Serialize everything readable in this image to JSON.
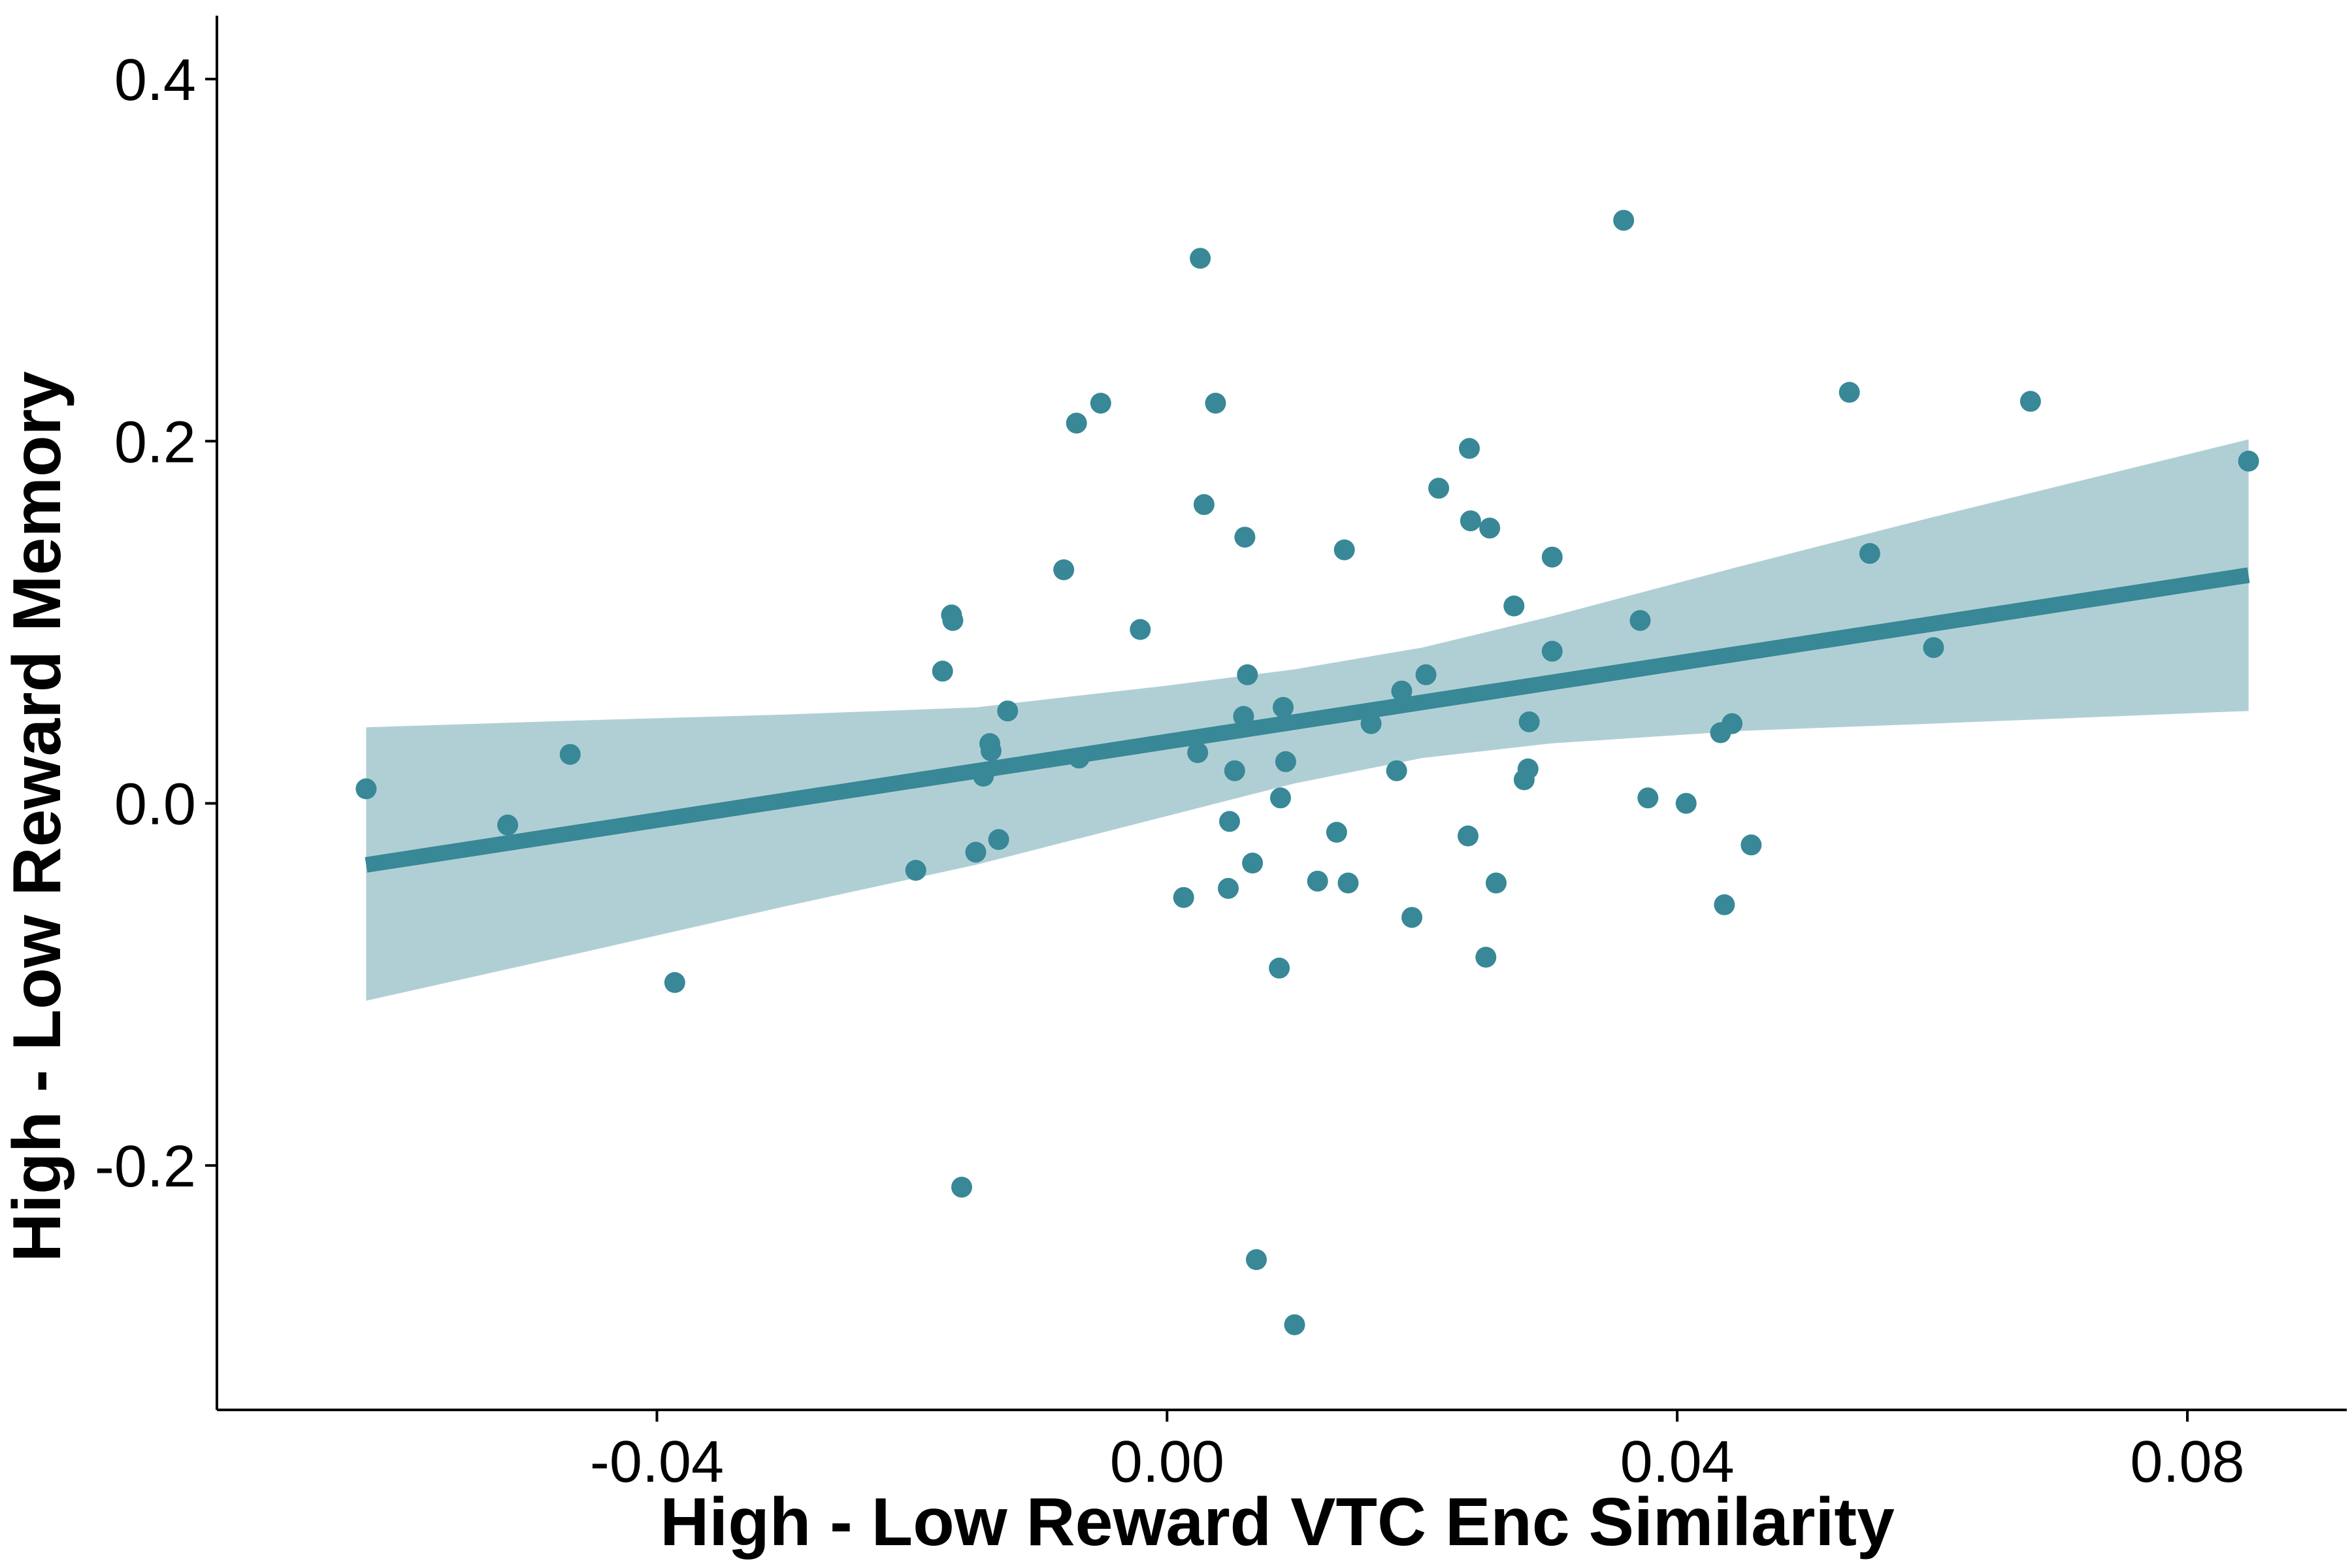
{
  "chart_data": {
    "type": "scatter",
    "title": "",
    "xlabel": "High - Low Reward VTC Enc Similarity",
    "ylabel": "High - Low Reward Memory",
    "xlim": [
      -0.0745,
      0.0925
    ],
    "ylim": [
      -0.335,
      0.435
    ],
    "x_ticks": [
      -0.04,
      0.0,
      0.04,
      0.08
    ],
    "x_tick_labels": [
      "-0.04",
      "0.00",
      "0.04",
      "0.08"
    ],
    "y_ticks": [
      -0.2,
      0.0,
      0.2,
      0.4
    ],
    "y_tick_labels": [
      "-0.2",
      "0.0",
      "0.2",
      "0.4"
    ],
    "grid": false,
    "legend": "none",
    "colors": {
      "points": "#388897",
      "fit_line": "#388897",
      "confidence_band": "#b0cfd5",
      "axes": "#000000"
    },
    "series": [
      {
        "points": [
          [
            -0.0628,
            0.008
          ],
          [
            -0.0517,
            -0.012
          ],
          [
            -0.0468,
            0.027
          ],
          [
            -0.0386,
            -0.099
          ],
          [
            -0.0197,
            -0.037
          ],
          [
            -0.0176,
            0.073
          ],
          [
            -0.0169,
            0.104
          ],
          [
            -0.0168,
            0.101
          ],
          [
            -0.0161,
            -0.212
          ],
          [
            -0.015,
            -0.027
          ],
          [
            -0.0144,
            0.015
          ],
          [
            -0.0139,
            0.033
          ],
          [
            -0.0138,
            0.029
          ],
          [
            -0.0132,
            -0.02
          ],
          [
            -0.0125,
            0.051
          ],
          [
            -0.0081,
            0.129
          ],
          [
            -0.0071,
            0.21
          ],
          [
            -0.0069,
            0.025
          ],
          [
            -0.0052,
            0.221
          ],
          [
            -0.0021,
            0.096
          ],
          [
            0.0013,
            -0.052
          ],
          [
            0.0024,
            0.028
          ],
          [
            0.0026,
            0.301
          ],
          [
            0.0029,
            0.165
          ],
          [
            0.0038,
            0.221
          ],
          [
            0.0048,
            -0.047
          ],
          [
            0.0049,
            -0.01
          ],
          [
            0.0053,
            0.018
          ],
          [
            0.006,
            0.048
          ],
          [
            0.0061,
            0.147
          ],
          [
            0.0063,
            0.071
          ],
          [
            0.0067,
            -0.033
          ],
          [
            0.007,
            -0.252
          ],
          [
            0.0088,
            -0.091
          ],
          [
            0.0089,
            0.003
          ],
          [
            0.0091,
            0.053
          ],
          [
            0.0093,
            0.023
          ],
          [
            0.01,
            -0.288
          ],
          [
            0.0118,
            -0.043
          ],
          [
            0.0133,
            -0.016
          ],
          [
            0.0139,
            0.14
          ],
          [
            0.0142,
            -0.044
          ],
          [
            0.016,
            0.044
          ],
          [
            0.018,
            0.018
          ],
          [
            0.0184,
            0.062
          ],
          [
            0.0192,
            -0.063
          ],
          [
            0.0203,
            0.071
          ],
          [
            0.0213,
            0.174
          ],
          [
            0.0236,
            -0.018
          ],
          [
            0.0237,
            0.196
          ],
          [
            0.0238,
            0.156
          ],
          [
            0.0253,
            0.152
          ],
          [
            0.0258,
            -0.044
          ],
          [
            0.025,
            -0.085
          ],
          [
            0.0272,
            0.109
          ],
          [
            0.028,
            0.013
          ],
          [
            0.0283,
            0.019
          ],
          [
            0.0284,
            0.045
          ],
          [
            0.0302,
            0.084
          ],
          [
            0.0302,
            0.136
          ],
          [
            0.0358,
            0.322
          ],
          [
            0.0371,
            0.101
          ],
          [
            0.0377,
            0.003
          ],
          [
            0.0407,
            0.0
          ],
          [
            0.0434,
            0.039
          ],
          [
            0.0437,
            -0.056
          ],
          [
            0.0443,
            0.044
          ],
          [
            0.0458,
            -0.023
          ],
          [
            0.0535,
            0.227
          ],
          [
            0.0551,
            0.138
          ],
          [
            0.0601,
            0.086
          ],
          [
            0.0677,
            0.222
          ],
          [
            0.0848,
            0.189
          ]
        ]
      }
    ],
    "fit_line": {
      "x": [
        -0.0628,
        0.0848
      ],
      "y": [
        -0.034,
        0.126
      ]
    },
    "confidence_band": {
      "x": [
        -0.0628,
        -0.045,
        -0.03,
        -0.015,
        0.0,
        0.01,
        0.02,
        0.03,
        0.045,
        0.06,
        0.0848
      ],
      "lower": [
        -0.109,
        -0.081,
        -0.057,
        -0.034,
        -0.007,
        0.011,
        0.025,
        0.033,
        0.04,
        0.044,
        0.051
      ],
      "upper": [
        0.042,
        0.046,
        0.049,
        0.053,
        0.065,
        0.074,
        0.086,
        0.103,
        0.131,
        0.158,
        0.201
      ]
    }
  }
}
